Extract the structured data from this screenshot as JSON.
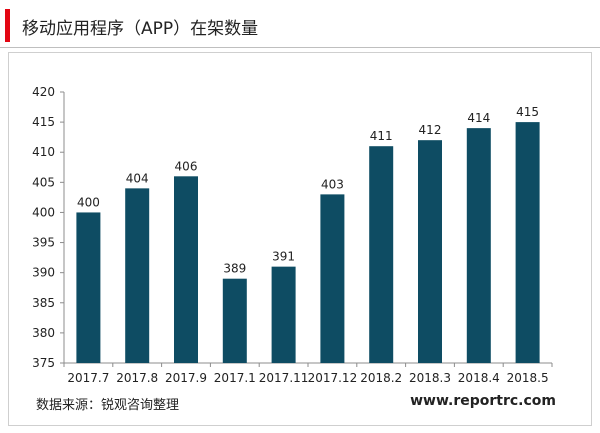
{
  "header": {
    "title": "移动应用程序（APP）在架数量",
    "accent_color": "#e30613"
  },
  "footer": {
    "source": "数据来源：锐观咨询整理",
    "website": "www.reportrc.com"
  },
  "chart_data": {
    "type": "bar",
    "categories": [
      "2017.7",
      "2017.8",
      "2017.9",
      "2017.1",
      "2017.11",
      "2017.12",
      "2018.2",
      "2018.3",
      "2018.4",
      "2018.5"
    ],
    "values": [
      400,
      404,
      406,
      389,
      391,
      403,
      411,
      412,
      414,
      415
    ],
    "ylim": [
      375,
      420
    ],
    "yticks": [
      375,
      380,
      385,
      390,
      395,
      400,
      405,
      410,
      415,
      420
    ],
    "bar_color": "#0e4c63",
    "grid": false,
    "data_labels": true,
    "legend": "none"
  }
}
